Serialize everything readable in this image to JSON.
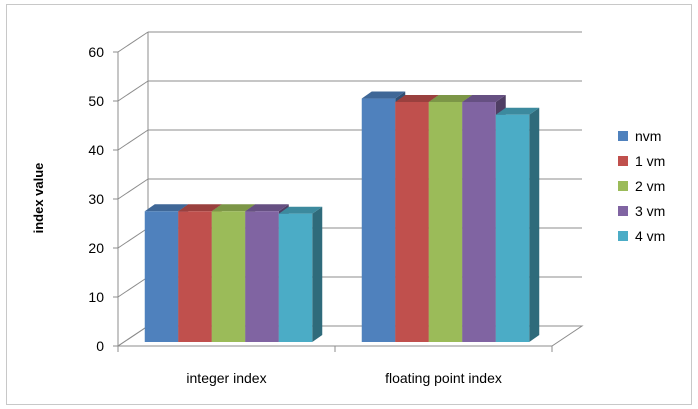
{
  "chart_data": {
    "type": "bar",
    "style": "3d-clustered-column",
    "categories": [
      "integer index",
      "floating point index"
    ],
    "ylabel": "index value",
    "xlabel": "",
    "ylim": [
      0,
      60
    ],
    "yticks": [
      0,
      10,
      20,
      30,
      40,
      50,
      60
    ],
    "grid": true,
    "legend_position": "right",
    "series": [
      {
        "name": "nvm",
        "color": "#4f81bd",
        "values": [
          27.5,
          50.5
        ]
      },
      {
        "name": "1 vm",
        "color": "#c0504d",
        "values": [
          27.5,
          49.8
        ]
      },
      {
        "name": "2 vm",
        "color": "#9bbb59",
        "values": [
          27.5,
          49.8
        ]
      },
      {
        "name": "3 vm",
        "color": "#8064a2",
        "values": [
          27.5,
          49.8
        ]
      },
      {
        "name": "4 vm",
        "color": "#4bacc6",
        "values": [
          27.0,
          47.2
        ]
      }
    ]
  }
}
